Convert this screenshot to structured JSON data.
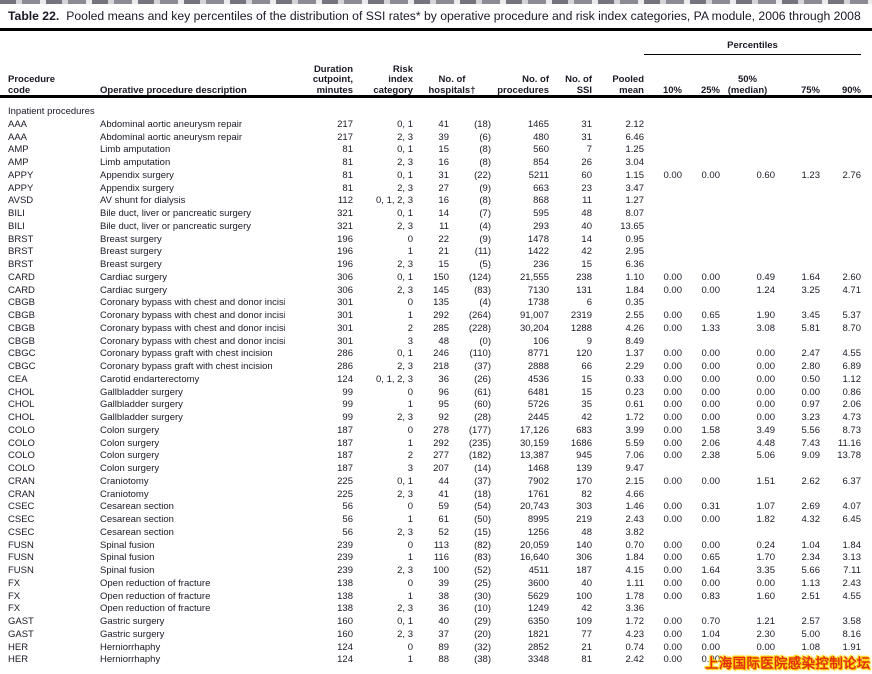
{
  "title": {
    "label": "Table 22.",
    "text": "Pooled means and key percentiles of the distribution of SSI rates* by operative procedure and risk index categories, PA module, 2006 through 2008"
  },
  "table": {
    "percentiles_label": "Percentiles",
    "headers": {
      "code": "Procedure\ncode",
      "desc": "Operative procedure description",
      "duration": "Duration\ncutpoint,\nminutes",
      "risk": "Risk\nindex\ncategory",
      "hospitals": "No. of\nhospitals†",
      "procedures": "No. of\nprocedures",
      "ssi": "No. of\nSSI",
      "mean": "Pooled\nmean",
      "p10": "10%",
      "p25": "25%",
      "p50": "50%\n(median)",
      "p75": "75%",
      "p90": "90%"
    },
    "section_label": "Inpatient procedures",
    "rows": [
      [
        "AAA",
        "Abdominal aortic aneurysm repair",
        "217",
        "0, 1",
        "41",
        "(18)",
        "1465",
        "31",
        "2.12",
        "",
        "",
        "",
        "",
        ""
      ],
      [
        "AAA",
        "Abdominal aortic aneurysm repair",
        "217",
        "2, 3",
        "39",
        "(6)",
        "480",
        "31",
        "6.46",
        "",
        "",
        "",
        "",
        ""
      ],
      [
        "AMP",
        "Limb amputation",
        "81",
        "0, 1",
        "15",
        "(8)",
        "560",
        "7",
        "1.25",
        "",
        "",
        "",
        "",
        ""
      ],
      [
        "AMP",
        "Limb amputation",
        "81",
        "2, 3",
        "16",
        "(8)",
        "854",
        "26",
        "3.04",
        "",
        "",
        "",
        "",
        ""
      ],
      [
        "APPY",
        "Appendix surgery",
        "81",
        "0, 1",
        "31",
        "(22)",
        "5211",
        "60",
        "1.15",
        "0.00",
        "0.00",
        "0.60",
        "1.23",
        "2.76"
      ],
      [
        "APPY",
        "Appendix surgery",
        "81",
        "2, 3",
        "27",
        "(9)",
        "663",
        "23",
        "3.47",
        "",
        "",
        "",
        "",
        ""
      ],
      [
        "AVSD",
        "AV shunt for dialysis",
        "112",
        "0, 1, 2, 3",
        "16",
        "(8)",
        "868",
        "11",
        "1.27",
        "",
        "",
        "",
        "",
        ""
      ],
      [
        "BILI",
        "Bile duct, liver or pancreatic surgery",
        "321",
        "0, 1",
        "14",
        "(7)",
        "595",
        "48",
        "8.07",
        "",
        "",
        "",
        "",
        ""
      ],
      [
        "BILI",
        "Bile duct, liver or pancreatic surgery",
        "321",
        "2, 3",
        "11",
        "(4)",
        "293",
        "40",
        "13.65",
        "",
        "",
        "",
        "",
        ""
      ],
      [
        "BRST",
        "Breast surgery",
        "196",
        "0",
        "22",
        "(9)",
        "1478",
        "14",
        "0.95",
        "",
        "",
        "",
        "",
        ""
      ],
      [
        "BRST",
        "Breast surgery",
        "196",
        "1",
        "21",
        "(11)",
        "1422",
        "42",
        "2.95",
        "",
        "",
        "",
        "",
        ""
      ],
      [
        "BRST",
        "Breast surgery",
        "196",
        "2, 3",
        "15",
        "(5)",
        "236",
        "15",
        "6.36",
        "",
        "",
        "",
        "",
        ""
      ],
      [
        "CARD",
        "Cardiac surgery",
        "306",
        "0, 1",
        "150",
        "(124)",
        "21,555",
        "238",
        "1.10",
        "0.00",
        "0.00",
        "0.49",
        "1.64",
        "2.60"
      ],
      [
        "CARD",
        "Cardiac surgery",
        "306",
        "2, 3",
        "145",
        "(83)",
        "7130",
        "131",
        "1.84",
        "0.00",
        "0.00",
        "1.24",
        "3.25",
        "4.71"
      ],
      [
        "CBGB",
        "Coronary bypass with chest and donor incision",
        "301",
        "0",
        "135",
        "(4)",
        "1738",
        "6",
        "0.35",
        "",
        "",
        "",
        "",
        ""
      ],
      [
        "CBGB",
        "Coronary bypass with chest and donor incision",
        "301",
        "1",
        "292",
        "(264)",
        "91,007",
        "2319",
        "2.55",
        "0.00",
        "0.65",
        "1.90",
        "3.45",
        "5.37"
      ],
      [
        "CBGB",
        "Coronary bypass with chest and donor incision",
        "301",
        "2",
        "285",
        "(228)",
        "30,204",
        "1288",
        "4.26",
        "0.00",
        "1.33",
        "3.08",
        "5.81",
        "8.70"
      ],
      [
        "CBGB",
        "Coronary bypass with chest and donor incision",
        "301",
        "3",
        "48",
        "(0)",
        "106",
        "9",
        "8.49",
        "",
        "",
        "",
        "",
        ""
      ],
      [
        "CBGC",
        "Coronary bypass graft with chest incision",
        "286",
        "0, 1",
        "246",
        "(110)",
        "8771",
        "120",
        "1.37",
        "0.00",
        "0.00",
        "0.00",
        "2.47",
        "4.55"
      ],
      [
        "CBGC",
        "Coronary bypass graft with chest incision",
        "286",
        "2, 3",
        "218",
        "(37)",
        "2888",
        "66",
        "2.29",
        "0.00",
        "0.00",
        "0.00",
        "2.80",
        "6.89"
      ],
      [
        "CEA",
        "Carotid endarterectomy",
        "124",
        "0, 1, 2, 3",
        "36",
        "(26)",
        "4536",
        "15",
        "0.33",
        "0.00",
        "0.00",
        "0.00",
        "0.50",
        "1.12"
      ],
      [
        "CHOL",
        "Gallbladder surgery",
        "99",
        "0",
        "96",
        "(61)",
        "6481",
        "15",
        "0.23",
        "0.00",
        "0.00",
        "0.00",
        "0.00",
        "0.86"
      ],
      [
        "CHOL",
        "Gallbladder surgery",
        "99",
        "1",
        "95",
        "(60)",
        "5726",
        "35",
        "0.61",
        "0.00",
        "0.00",
        "0.00",
        "0.97",
        "2.06"
      ],
      [
        "CHOL",
        "Gallbladder surgery",
        "99",
        "2, 3",
        "92",
        "(28)",
        "2445",
        "42",
        "1.72",
        "0.00",
        "0.00",
        "0.00",
        "3.23",
        "4.73"
      ],
      [
        "COLO",
        "Colon surgery",
        "187",
        "0",
        "278",
        "(177)",
        "17,126",
        "683",
        "3.99",
        "0.00",
        "1.58",
        "3.49",
        "5.56",
        "8.73"
      ],
      [
        "COLO",
        "Colon surgery",
        "187",
        "1",
        "292",
        "(235)",
        "30,159",
        "1686",
        "5.59",
        "0.00",
        "2.06",
        "4.48",
        "7.43",
        "11.16"
      ],
      [
        "COLO",
        "Colon surgery",
        "187",
        "2",
        "277",
        "(182)",
        "13,387",
        "945",
        "7.06",
        "0.00",
        "2.38",
        "5.06",
        "9.09",
        "13.78"
      ],
      [
        "COLO",
        "Colon surgery",
        "187",
        "3",
        "207",
        "(14)",
        "1468",
        "139",
        "9.47",
        "",
        "",
        "",
        "",
        ""
      ],
      [
        "CRAN",
        "Craniotomy",
        "225",
        "0, 1",
        "44",
        "(37)",
        "7902",
        "170",
        "2.15",
        "0.00",
        "0.00",
        "1.51",
        "2.62",
        "6.37"
      ],
      [
        "CRAN",
        "Craniotomy",
        "225",
        "2, 3",
        "41",
        "(18)",
        "1761",
        "82",
        "4.66",
        "",
        "",
        "",
        "",
        ""
      ],
      [
        "CSEC",
        "Cesarean section",
        "56",
        "0",
        "59",
        "(54)",
        "20,743",
        "303",
        "1.46",
        "0.00",
        "0.31",
        "1.07",
        "2.69",
        "4.07"
      ],
      [
        "CSEC",
        "Cesarean section",
        "56",
        "1",
        "61",
        "(50)",
        "8995",
        "219",
        "2.43",
        "0.00",
        "0.00",
        "1.82",
        "4.32",
        "6.45"
      ],
      [
        "CSEC",
        "Cesarean section",
        "56",
        "2, 3",
        "52",
        "(15)",
        "1256",
        "48",
        "3.82",
        "",
        "",
        "",
        "",
        ""
      ],
      [
        "FUSN",
        "Spinal fusion",
        "239",
        "0",
        "113",
        "(82)",
        "20,059",
        "140",
        "0.70",
        "0.00",
        "0.00",
        "0.24",
        "1.04",
        "1.84"
      ],
      [
        "FUSN",
        "Spinal fusion",
        "239",
        "1",
        "116",
        "(83)",
        "16,640",
        "306",
        "1.84",
        "0.00",
        "0.65",
        "1.70",
        "2.34",
        "3.13"
      ],
      [
        "FUSN",
        "Spinal fusion",
        "239",
        "2, 3",
        "100",
        "(52)",
        "4511",
        "187",
        "4.15",
        "0.00",
        "1.64",
        "3.35",
        "5.66",
        "7.11"
      ],
      [
        "FX",
        "Open reduction of fracture",
        "138",
        "0",
        "39",
        "(25)",
        "3600",
        "40",
        "1.11",
        "0.00",
        "0.00",
        "0.00",
        "1.13",
        "2.43"
      ],
      [
        "FX",
        "Open reduction of fracture",
        "138",
        "1",
        "38",
        "(30)",
        "5629",
        "100",
        "1.78",
        "0.00",
        "0.83",
        "1.60",
        "2.51",
        "4.55"
      ],
      [
        "FX",
        "Open reduction of fracture",
        "138",
        "2, 3",
        "36",
        "(10)",
        "1249",
        "42",
        "3.36",
        "",
        "",
        "",
        "",
        ""
      ],
      [
        "GAST",
        "Gastric surgery",
        "160",
        "0, 1",
        "40",
        "(29)",
        "6350",
        "109",
        "1.72",
        "0.00",
        "0.70",
        "1.21",
        "2.57",
        "3.58"
      ],
      [
        "GAST",
        "Gastric surgery",
        "160",
        "2, 3",
        "37",
        "(20)",
        "1821",
        "77",
        "4.23",
        "0.00",
        "1.04",
        "2.30",
        "5.00",
        "8.16"
      ],
      [
        "HER",
        "Herniorrhaphy",
        "124",
        "0",
        "89",
        "(32)",
        "2852",
        "21",
        "0.74",
        "0.00",
        "0.00",
        "0.00",
        "1.08",
        "1.91"
      ],
      [
        "HER",
        "Herniorrhaphy",
        "124",
        "1",
        "88",
        "(38)",
        "3348",
        "81",
        "2.42",
        "0.00",
        "0.00",
        "",
        "",
        ""
      ]
    ]
  },
  "watermark": {
    "text": "上海国际医院感染控制论坛",
    "color": "#e2300f",
    "glow": "#ffd400"
  }
}
